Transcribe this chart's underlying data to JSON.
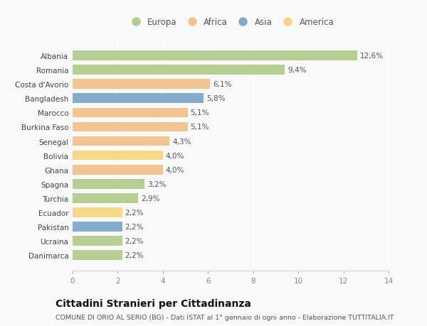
{
  "countries": [
    "Albania",
    "Romania",
    "Costa d'Avorio",
    "Bangladesh",
    "Marocco",
    "Burkina Faso",
    "Senegal",
    "Bolivia",
    "Ghana",
    "Spagna",
    "Turchia",
    "Ecuador",
    "Pakistan",
    "Ucraina",
    "Danimarca"
  ],
  "values": [
    12.6,
    9.4,
    6.1,
    5.8,
    5.1,
    5.1,
    4.3,
    4.0,
    4.0,
    3.2,
    2.9,
    2.2,
    2.2,
    2.2,
    2.2
  ],
  "labels": [
    "12,6%",
    "9,4%",
    "6,1%",
    "5,8%",
    "5,1%",
    "5,1%",
    "4,3%",
    "4,0%",
    "4,0%",
    "3,2%",
    "2,9%",
    "2,2%",
    "2,2%",
    "2,2%",
    "2,2%"
  ],
  "continents": [
    "Europa",
    "Europa",
    "Africa",
    "Asia",
    "Africa",
    "Africa",
    "Africa",
    "America",
    "Africa",
    "Europa",
    "Europa",
    "America",
    "Asia",
    "Europa",
    "Europa"
  ],
  "continent_colors": {
    "Europa": "#a8c57a",
    "Africa": "#f0b97a",
    "Asia": "#6b9dc2",
    "America": "#f5d26e"
  },
  "legend_order": [
    "Europa",
    "Africa",
    "Asia",
    "America"
  ],
  "xlim": [
    0,
    14
  ],
  "xticks": [
    0,
    2,
    4,
    6,
    8,
    10,
    12,
    14
  ],
  "title": "Cittadini Stranieri per Cittadinanza",
  "subtitle": "COMUNE DI ORIO AL SERIO (BG) - Dati ISTAT al 1° gennaio di ogni anno - Elaborazione TUTTITALIA.IT",
  "background_color": "#f9f9f9",
  "grid_color": "#ffffff",
  "bar_height": 0.68,
  "label_fontsize": 7.5,
  "tick_fontsize": 7.5,
  "title_fontsize": 10,
  "subtitle_fontsize": 6.8,
  "legend_fontsize": 8.5
}
